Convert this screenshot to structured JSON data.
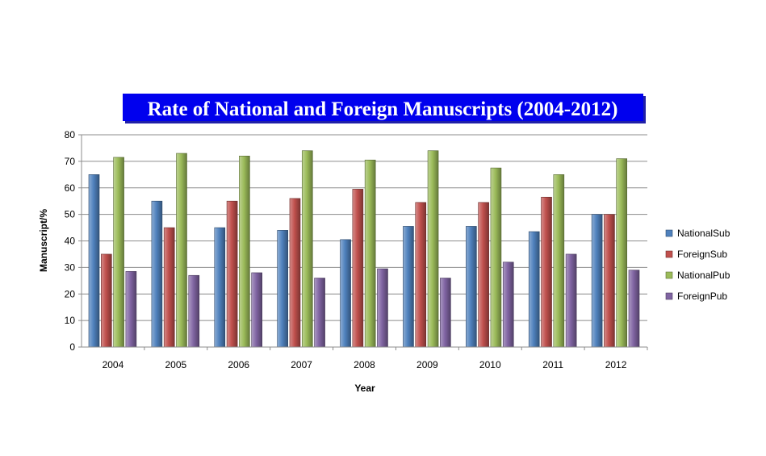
{
  "chart_data": {
    "type": "bar",
    "title": "Rate of National and Foreign Manuscripts (2004-2012)",
    "xlabel": "Year",
    "ylabel": "Manuscript/%",
    "ylim": [
      0,
      80
    ],
    "yticks": [
      0,
      10,
      20,
      30,
      40,
      50,
      60,
      70,
      80
    ],
    "grid": true,
    "legend_position": "right",
    "categories": [
      "2004",
      "2005",
      "2006",
      "2007",
      "2008",
      "2009",
      "2010",
      "2011",
      "2012"
    ],
    "series": [
      {
        "name": "NationalSub",
        "color": "#4F81BD",
        "values": [
          65,
          55,
          45,
          44,
          40.5,
          45.5,
          45.5,
          43.5,
          50
        ]
      },
      {
        "name": "ForeignSub",
        "color": "#C0504D",
        "values": [
          35,
          45,
          55,
          56,
          59.5,
          54.5,
          54.5,
          56.5,
          50
        ]
      },
      {
        "name": "NationalPub",
        "color": "#9BBB59",
        "values": [
          71.5,
          73,
          72,
          74,
          70.5,
          74,
          67.5,
          65,
          71
        ]
      },
      {
        "name": "ForeignPub",
        "color": "#8064A2",
        "values": [
          28.5,
          27,
          28,
          26,
          29.5,
          26,
          32,
          35,
          29
        ]
      }
    ]
  }
}
